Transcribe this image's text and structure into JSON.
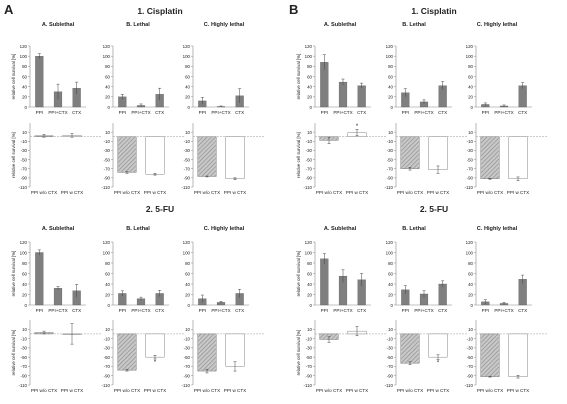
{
  "figure": {
    "panel_labels": [
      "A",
      "B"
    ],
    "drug_titles": [
      "1. Cisplatin",
      "2. 5-FU"
    ],
    "column_titles": [
      "A. Sublethal",
      "B. Lethal",
      "C. Highly lethal"
    ],
    "ylabel_top": "relative cell survival [%]",
    "ylabel_bottom": "relative cell survival [%]",
    "top_categories": [
      "PPI",
      "PPI+CTX",
      "CTX"
    ],
    "bottom_categories": [
      "PPI w/o CTX",
      "PPI w CTX"
    ],
    "colors": {
      "top_bar": "#7f7f7f",
      "hatched_bar": "#bdbdbd",
      "white_bar": "#ffffff",
      "axis": "#888888",
      "text": "#222222"
    }
  },
  "chart_data": [
    {
      "panel": "A",
      "drug": "1. Cisplatin",
      "title": "A. Sublethal",
      "type": "bar",
      "categories": [
        "PPI",
        "PPI+CTX",
        "CTX"
      ],
      "values": [
        100,
        30,
        37
      ],
      "errors": [
        5,
        15,
        12
      ],
      "ylim": [
        0,
        120
      ],
      "yticks": [
        0,
        20,
        40,
        60,
        80,
        100,
        120
      ],
      "ylabel": "relative cell survival [%]"
    },
    {
      "panel": "A",
      "drug": "1. Cisplatin",
      "title": "B. Lethal",
      "type": "bar",
      "categories": [
        "PPI",
        "PPI+CTX",
        "CTX"
      ],
      "values": [
        20,
        3,
        25
      ],
      "errors": [
        5,
        3,
        12
      ],
      "ylim": [
        0,
        120
      ],
      "yticks": [
        0,
        20,
        40,
        60,
        80,
        100,
        120
      ]
    },
    {
      "panel": "A",
      "drug": "1. Cisplatin",
      "title": "C. Highly lethal",
      "type": "bar",
      "categories": [
        "PPI",
        "PPI+CTX",
        "CTX"
      ],
      "values": [
        12,
        1,
        22
      ],
      "errors": [
        7,
        1,
        14
      ],
      "ylim": [
        0,
        120
      ],
      "yticks": [
        0,
        20,
        40,
        60,
        80,
        100,
        120
      ]
    },
    {
      "panel": "A",
      "drug": "1. Cisplatin",
      "type": "bar",
      "categories": [
        "PPI w/o CTX",
        "PPI w CTX"
      ],
      "values": [
        2,
        3
      ],
      "errors": [
        3,
        4
      ],
      "ylim": [
        -110,
        30
      ],
      "yticks": [
        10,
        -10,
        -30,
        -50,
        -70,
        -90,
        -110
      ],
      "ylabel": "relative cell survival [%]",
      "marks": [
        "",
        ""
      ]
    },
    {
      "panel": "A",
      "drug": "1. Cisplatin",
      "type": "bar",
      "categories": [
        "PPI w/o CTX",
        "PPI w CTX"
      ],
      "values": [
        -78,
        -82
      ],
      "errors": [
        2,
        2
      ],
      "ylim": [
        -110,
        30
      ],
      "yticks": [
        10,
        -10,
        -30,
        -50,
        -70,
        -90,
        -110
      ],
      "marks": [
        "",
        ""
      ]
    },
    {
      "panel": "A",
      "drug": "1. Cisplatin",
      "type": "bar",
      "categories": [
        "PPI w/o CTX",
        "PPI w CTX"
      ],
      "values": [
        -87,
        -92
      ],
      "errors": [
        1,
        2
      ],
      "ylim": [
        -110,
        30
      ],
      "yticks": [
        10,
        -10,
        -30,
        -50,
        -70,
        -90,
        -110
      ],
      "marks": [
        "",
        ""
      ]
    },
    {
      "panel": "A",
      "drug": "2. 5-FU",
      "title": "A. Sublethal",
      "type": "bar",
      "categories": [
        "PPI",
        "PPI+CTX",
        "CTX"
      ],
      "values": [
        100,
        32,
        27
      ],
      "errors": [
        5,
        3,
        12
      ],
      "ylim": [
        0,
        120
      ],
      "yticks": [
        0,
        20,
        40,
        60,
        80,
        100,
        120
      ],
      "ylabel": "relative cell survival [%]"
    },
    {
      "panel": "A",
      "drug": "2. 5-FU",
      "title": "B. Lethal",
      "type": "bar",
      "categories": [
        "PPI",
        "PPI+CTX",
        "CTX"
      ],
      "values": [
        22,
        12,
        22
      ],
      "errors": [
        5,
        3,
        6
      ],
      "ylim": [
        0,
        120
      ],
      "yticks": [
        0,
        20,
        40,
        60,
        80,
        100,
        120
      ]
    },
    {
      "panel": "A",
      "drug": "2. 5-FU",
      "title": "C. Highly lethal",
      "type": "bar",
      "categories": [
        "PPI",
        "PPI+CTX",
        "CTX"
      ],
      "values": [
        12,
        5,
        22
      ],
      "errors": [
        7,
        2,
        8
      ],
      "ylim": [
        0,
        120
      ],
      "yticks": [
        0,
        20,
        40,
        60,
        80,
        100,
        120
      ]
    },
    {
      "panel": "A",
      "drug": "2. 5-FU",
      "type": "bar",
      "categories": [
        "PPI w/o CTX",
        "PPI w CTX"
      ],
      "values": [
        3,
        0
      ],
      "errors": [
        3,
        22
      ],
      "ylim": [
        -110,
        30
      ],
      "yticks": [
        10,
        -10,
        -30,
        -50,
        -70,
        -90,
        -110
      ],
      "ylabel": "relative cell survival [%]",
      "marks": [
        "",
        ""
      ]
    },
    {
      "panel": "A",
      "drug": "2. 5-FU",
      "type": "bar",
      "categories": [
        "PPI w/o CTX",
        "PPI w CTX"
      ],
      "values": [
        -78,
        -50
      ],
      "errors": [
        2,
        4
      ],
      "ylim": [
        -110,
        30
      ],
      "yticks": [
        10,
        -10,
        -30,
        -50,
        -70,
        -90,
        -110
      ],
      "marks": [
        "",
        "*"
      ]
    },
    {
      "panel": "A",
      "drug": "2. 5-FU",
      "type": "bar",
      "categories": [
        "PPI w/o CTX",
        "PPI w CTX"
      ],
      "values": [
        -80,
        -70
      ],
      "errors": [
        4,
        10
      ],
      "ylim": [
        -110,
        30
      ],
      "yticks": [
        10,
        -10,
        -30,
        -50,
        -70,
        -90,
        -110
      ],
      "marks": [
        "",
        ""
      ]
    },
    {
      "panel": "B",
      "drug": "1. Cisplatin",
      "title": "A. Sublethal",
      "type": "bar",
      "categories": [
        "PPI",
        "PPI+CTX",
        "CTX"
      ],
      "values": [
        88,
        49,
        42
      ],
      "errors": [
        15,
        6,
        5
      ],
      "ylim": [
        0,
        120
      ],
      "yticks": [
        0,
        20,
        40,
        60,
        80,
        100,
        120
      ],
      "ylabel": "relative cell survival [%]"
    },
    {
      "panel": "B",
      "drug": "1. Cisplatin",
      "title": "B. Lethal",
      "type": "bar",
      "categories": [
        "PPI",
        "PPI+CTX",
        "CTX"
      ],
      "values": [
        28,
        10,
        42
      ],
      "errors": [
        8,
        4,
        8
      ],
      "ylim": [
        0,
        120
      ],
      "yticks": [
        0,
        20,
        40,
        60,
        80,
        100,
        120
      ]
    },
    {
      "panel": "B",
      "drug": "1. Cisplatin",
      "title": "C. Highly lethal",
      "type": "bar",
      "categories": [
        "PPI",
        "PPI+CTX",
        "CTX"
      ],
      "values": [
        5,
        2,
        42
      ],
      "errors": [
        3,
        2,
        6
      ],
      "ylim": [
        0,
        120
      ],
      "yticks": [
        0,
        20,
        40,
        60,
        80,
        100,
        120
      ]
    },
    {
      "panel": "B",
      "drug": "1. Cisplatin",
      "type": "bar",
      "categories": [
        "PPI w/o CTX",
        "PPI w CTX"
      ],
      "values": [
        -8,
        9
      ],
      "errors": [
        7,
        7
      ],
      "ylim": [
        -110,
        30
      ],
      "yticks": [
        10,
        -10,
        -30,
        -50,
        -70,
        -90,
        -110
      ],
      "ylabel": "relative cell survival [%]",
      "marks": [
        "",
        "*"
      ]
    },
    {
      "panel": "B",
      "drug": "1. Cisplatin",
      "type": "bar",
      "categories": [
        "PPI w/o CTX",
        "PPI w CTX"
      ],
      "values": [
        -70,
        -72
      ],
      "errors": [
        3,
        8
      ],
      "ylim": [
        -110,
        30
      ],
      "yticks": [
        10,
        -10,
        -30,
        -50,
        -70,
        -90,
        -110
      ],
      "marks": [
        "",
        ""
      ]
    },
    {
      "panel": "B",
      "drug": "1. Cisplatin",
      "type": "bar",
      "categories": [
        "PPI w/o CTX",
        "PPI w CTX"
      ],
      "values": [
        -92,
        -92
      ],
      "errors": [
        1,
        4
      ],
      "ylim": [
        -110,
        30
      ],
      "yticks": [
        10,
        -10,
        -30,
        -50,
        -70,
        -90,
        -110
      ],
      "marks": [
        "",
        ""
      ]
    },
    {
      "panel": "B",
      "drug": "2. 5-FU",
      "title": "A. Sublethal",
      "type": "bar",
      "categories": [
        "PPI",
        "PPI+CTX",
        "CTX"
      ],
      "values": [
        88,
        55,
        48
      ],
      "errors": [
        10,
        12,
        12
      ],
      "ylim": [
        0,
        120
      ],
      "yticks": [
        0,
        20,
        40,
        60,
        80,
        100,
        120
      ],
      "ylabel": "relative cell survival [%]"
    },
    {
      "panel": "B",
      "drug": "2. 5-FU",
      "title": "B. Lethal",
      "type": "bar",
      "categories": [
        "PPI",
        "PPI+CTX",
        "CTX"
      ],
      "values": [
        29,
        21,
        40
      ],
      "errors": [
        8,
        6,
        6
      ],
      "ylim": [
        0,
        120
      ],
      "yticks": [
        0,
        20,
        40,
        60,
        80,
        100,
        120
      ]
    },
    {
      "panel": "B",
      "drug": "2. 5-FU",
      "title": "C. Highly lethal",
      "type": "bar",
      "categories": [
        "PPI",
        "PPI+CTX",
        "CTX"
      ],
      "values": [
        6,
        3,
        49
      ],
      "errors": [
        4,
        2,
        8
      ],
      "ylim": [
        0,
        120
      ],
      "yticks": [
        0,
        20,
        40,
        60,
        80,
        100,
        120
      ]
    },
    {
      "panel": "B",
      "drug": "2. 5-FU",
      "type": "bar",
      "categories": [
        "PPI w/o CTX",
        "PPI w CTX"
      ],
      "values": [
        -12,
        6
      ],
      "errors": [
        6,
        10
      ],
      "ylim": [
        -110,
        30
      ],
      "yticks": [
        10,
        -10,
        -30,
        -50,
        -70,
        -90,
        -110
      ],
      "ylabel": "relative cell survival [%]",
      "marks": [
        "",
        ""
      ]
    },
    {
      "panel": "B",
      "drug": "2. 5-FU",
      "type": "bar",
      "categories": [
        "PPI w/o CTX",
        "PPI w CTX"
      ],
      "values": [
        -63,
        -50
      ],
      "errors": [
        3,
        5
      ],
      "ylim": [
        -110,
        30
      ],
      "yticks": [
        10,
        -10,
        -30,
        -50,
        -70,
        -90,
        -110
      ],
      "marks": [
        "",
        "*"
      ]
    },
    {
      "panel": "B",
      "drug": "2. 5-FU",
      "type": "bar",
      "categories": [
        "PPI w/o CTX",
        "PPI w CTX"
      ],
      "values": [
        -92,
        -92
      ],
      "errors": [
        1,
        3
      ],
      "ylim": [
        -110,
        30
      ],
      "yticks": [
        10,
        -10,
        -30,
        -50,
        -70,
        -90,
        -110
      ],
      "marks": [
        "",
        ""
      ]
    }
  ]
}
